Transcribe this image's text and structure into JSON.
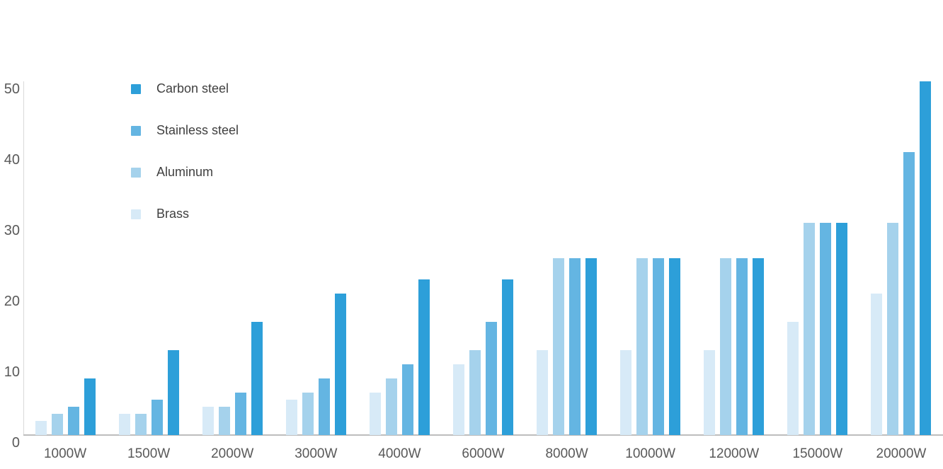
{
  "page": {
    "background_color": "#ffffff",
    "text_color_axis": "#595959",
    "text_color_legend": "#404040",
    "axis_line_color": "#D9D9D9",
    "baseline_color": "#BDBDBD"
  },
  "chart_data": {
    "type": "bar",
    "title": "",
    "xlabel": "",
    "ylabel": "",
    "categories": [
      "1000W",
      "1500W",
      "2000W",
      "3000W",
      "4000W",
      "6000W",
      "8000W",
      "10000W",
      "12000W",
      "15000W",
      "20000W"
    ],
    "series": [
      {
        "name": "Carbon steel",
        "color": "#2D9FD9",
        "values": [
          8,
          12,
          16,
          20,
          22,
          22,
          25,
          25,
          25,
          30,
          50
        ]
      },
      {
        "name": "Stainless steel",
        "color": "#64B5E2",
        "values": [
          4,
          5,
          6,
          8,
          10,
          16,
          25,
          25,
          25,
          30,
          40
        ]
      },
      {
        "name": "Aluminum",
        "color": "#A5D2EC",
        "values": [
          3,
          3,
          4,
          6,
          8,
          12,
          25,
          25,
          25,
          30,
          30
        ]
      },
      {
        "name": "Brass",
        "color": "#D7EAF7",
        "values": [
          2,
          3,
          4,
          5,
          6,
          10,
          12,
          12,
          12,
          16,
          20
        ]
      }
    ],
    "bar_order_left_to_right": [
      "Brass",
      "Aluminum",
      "Stainless steel",
      "Carbon steel"
    ],
    "yticks": [
      0,
      10,
      20,
      30,
      40,
      50
    ],
    "ylim": [
      0,
      50
    ],
    "grid": false,
    "legend_position": "top-left-inside",
    "legend_order": [
      "Carbon steel",
      "Stainless steel",
      "Aluminum",
      "Brass"
    ]
  }
}
